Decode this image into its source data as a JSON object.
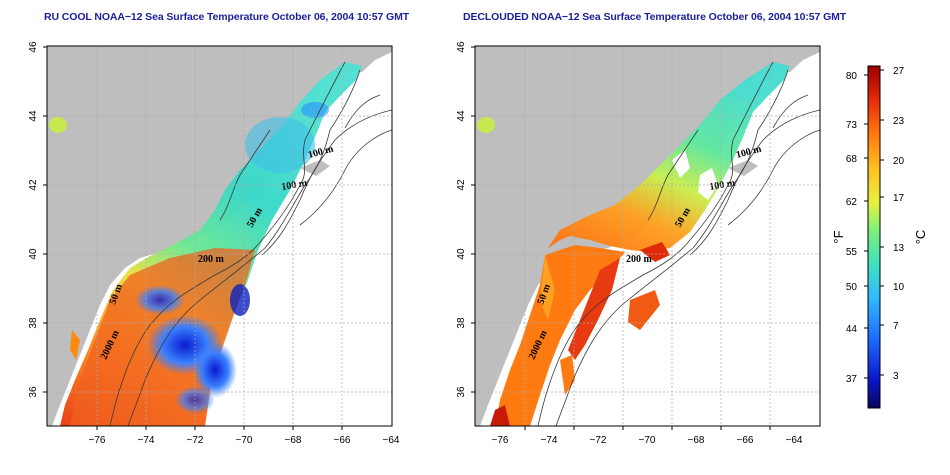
{
  "panels": [
    {
      "title": "RU COOL NOAA−12 Sea Surface Temperature October 06, 2004 10:57 GMT"
    },
    {
      "title": "DECLOUDED NOAA−12 Sea Surface Temperature October 06, 2004 10:57 GMT"
    }
  ],
  "axes": {
    "lat_ticks": [
      "46",
      "44",
      "42",
      "40",
      "38",
      "36"
    ],
    "lon_ticks": [
      "−76",
      "−74",
      "−72",
      "−70",
      "−68",
      "−66",
      "−64"
    ]
  },
  "contour_labels": [
    "100 m",
    "100 m",
    "50 m",
    "200 m",
    "50 m",
    "2000 m"
  ],
  "colorbar": {
    "f_label": "°F",
    "c_label": "°C",
    "f_ticks": [
      "80",
      "73",
      "68",
      "62",
      "55",
      "50",
      "44",
      "37"
    ],
    "c_ticks": [
      "27",
      "23",
      "20",
      "17",
      "13",
      "10",
      "7",
      "3"
    ],
    "colors": [
      "#08085e",
      "#0a14c8",
      "#1e6aff",
      "#30b8ff",
      "#3fe0c0",
      "#7ef07a",
      "#e8f040",
      "#ffc020",
      "#ff7a10",
      "#e82a0a",
      "#9a0000"
    ]
  },
  "map_colors": {
    "land": "#bebebe",
    "sea": "#ffffff"
  }
}
